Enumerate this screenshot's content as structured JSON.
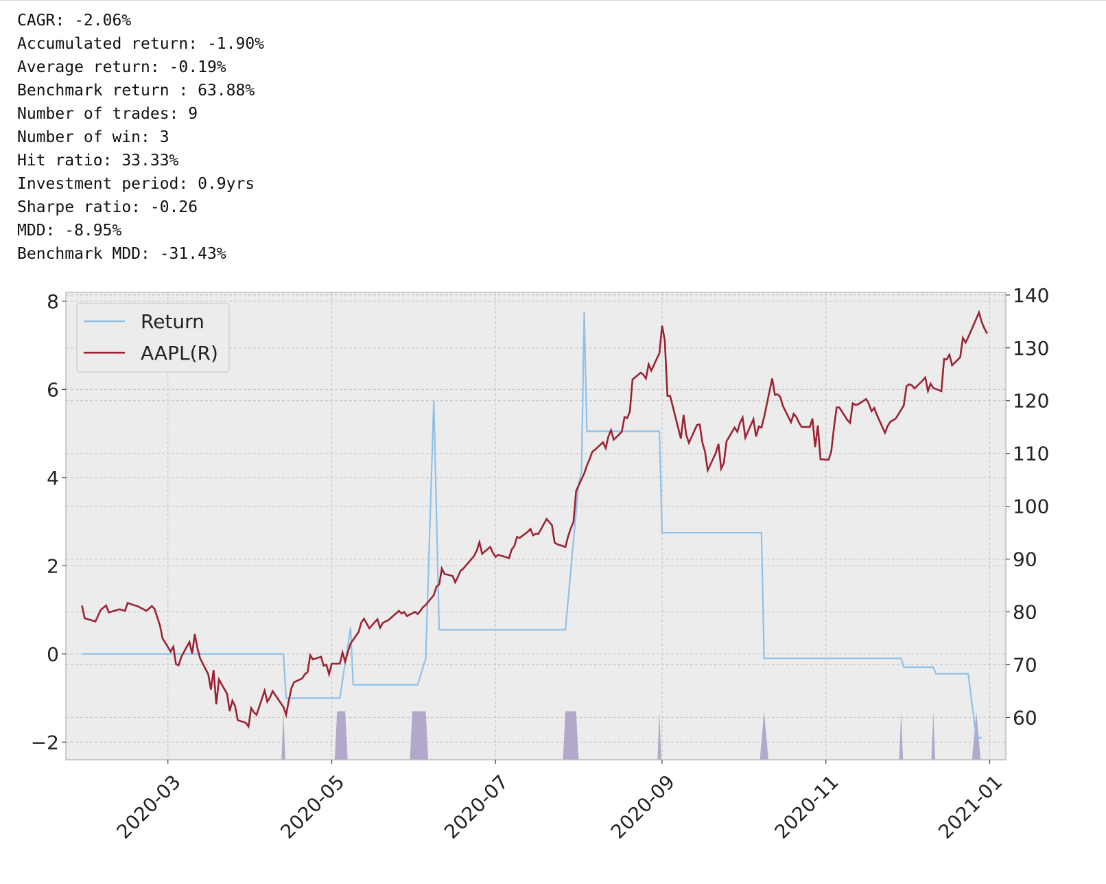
{
  "stats": [
    "CAGR: -2.06%",
    "Accumulated return: -1.90%",
    "Average return: -0.19%",
    "Benchmark return : 63.88%",
    "Number of trades: 9",
    "Number of win: 3",
    "Hit ratio: 33.33%",
    "Investment period: 0.9yrs",
    "Sharpe ratio: -0.26",
    "MDD: -8.95%",
    "Benchmark MDD: -31.43%"
  ],
  "colors": {
    "return": "#8fc1e8",
    "aapl": "#9b2231",
    "fill": "#a89cc4",
    "background": "#ececec",
    "grid": "#c8c8c8"
  },
  "chart_data": {
    "type": "line",
    "legend_position": "top-left",
    "grid": true,
    "ylim_left": [
      -2.4,
      8.2
    ],
    "ylim_right": [
      52,
      140.5
    ],
    "xlim": [
      "2020-01-23",
      "2021-01-07"
    ],
    "x_ticks": [
      "2020-03",
      "2020-05",
      "2020-07",
      "2020-09",
      "2020-11",
      "2021-01"
    ],
    "x_tick_dates": [
      "2020-03-01",
      "2020-05-01",
      "2020-07-01",
      "2020-09-01",
      "2020-11-01",
      "2021-01-01"
    ],
    "y_ticks_left": [
      -2,
      0,
      2,
      4,
      6,
      8
    ],
    "y_ticks_right": [
      60,
      70,
      80,
      90,
      100,
      110,
      120,
      130,
      140
    ],
    "series": [
      {
        "name": "Return",
        "axis": "left",
        "points": [
          [
            "2020-01-29",
            0
          ],
          [
            "2020-04-13",
            0
          ],
          [
            "2020-04-14",
            -1.0
          ],
          [
            "2020-05-04",
            -1.0
          ],
          [
            "2020-05-08",
            0.6
          ],
          [
            "2020-05-09",
            -0.7
          ],
          [
            "2020-06-02",
            -0.7
          ],
          [
            "2020-06-05",
            -0.1
          ],
          [
            "2020-06-08",
            5.75
          ],
          [
            "2020-06-10",
            0.55
          ],
          [
            "2020-07-27",
            0.55
          ],
          [
            "2020-08-01",
            3.9
          ],
          [
            "2020-08-02",
            4.1
          ],
          [
            "2020-08-03",
            7.75
          ],
          [
            "2020-08-04",
            5.05
          ],
          [
            "2020-08-31",
            5.05
          ],
          [
            "2020-09-01",
            2.75
          ],
          [
            "2020-10-08",
            2.75
          ],
          [
            "2020-10-09",
            -0.1
          ],
          [
            "2020-11-29",
            -0.1
          ],
          [
            "2020-11-30",
            -0.3
          ],
          [
            "2020-12-11",
            -0.3
          ],
          [
            "2020-12-12",
            -0.45
          ],
          [
            "2020-12-24",
            -0.45
          ],
          [
            "2020-12-27",
            -1.9
          ],
          [
            "2020-12-29",
            -1.9
          ]
        ]
      },
      {
        "name": "AAPL(R)",
        "axis": "right",
        "points": [
          [
            "2020-01-29",
            81.2
          ],
          [
            "2020-01-30",
            78.8
          ],
          [
            "2020-02-03",
            78.2
          ],
          [
            "2020-02-05",
            80.4
          ],
          [
            "2020-02-07",
            81.2
          ],
          [
            "2020-02-08",
            79.9
          ],
          [
            "2020-02-12",
            80.5
          ],
          [
            "2020-02-14",
            80.2
          ],
          [
            "2020-02-15",
            81.7
          ],
          [
            "2020-02-19",
            81.0
          ],
          [
            "2020-02-22",
            80.2
          ],
          [
            "2020-02-24",
            81.1
          ],
          [
            "2020-02-25",
            80.6
          ],
          [
            "2020-02-27",
            77.5
          ],
          [
            "2020-02-28",
            75.0
          ],
          [
            "2020-03-02",
            72.5
          ],
          [
            "2020-03-03",
            73.4
          ],
          [
            "2020-03-04",
            70.1
          ],
          [
            "2020-03-05",
            69.9
          ],
          [
            "2020-03-06",
            71.5
          ],
          [
            "2020-03-09",
            74.3
          ],
          [
            "2020-03-10",
            72.1
          ],
          [
            "2020-03-11",
            75.8
          ],
          [
            "2020-03-12",
            73.1
          ],
          [
            "2020-03-13",
            71.2
          ],
          [
            "2020-03-16",
            68.2
          ],
          [
            "2020-03-17",
            65.3
          ],
          [
            "2020-03-18",
            69.0
          ],
          [
            "2020-03-19",
            62.5
          ],
          [
            "2020-03-20",
            67.2
          ],
          [
            "2020-03-23",
            64.5
          ],
          [
            "2020-03-24",
            61.2
          ],
          [
            "2020-03-25",
            63.2
          ],
          [
            "2020-03-26",
            62.2
          ],
          [
            "2020-03-27",
            59.5
          ],
          [
            "2020-03-30",
            59.0
          ],
          [
            "2020-03-31",
            58.3
          ],
          [
            "2020-04-01",
            61.8
          ],
          [
            "2020-04-02",
            61.0
          ],
          [
            "2020-04-03",
            60.5
          ],
          [
            "2020-04-06",
            65.1
          ],
          [
            "2020-04-07",
            63.0
          ],
          [
            "2020-04-08",
            63.8
          ],
          [
            "2020-04-09",
            65.0
          ],
          [
            "2020-04-13",
            62.0
          ],
          [
            "2020-04-14",
            60.5
          ],
          [
            "2020-04-15",
            63.2
          ],
          [
            "2020-04-16",
            65.6
          ],
          [
            "2020-04-17",
            66.7
          ],
          [
            "2020-04-20",
            67.4
          ],
          [
            "2020-04-21",
            68.2
          ],
          [
            "2020-04-22",
            68.6
          ],
          [
            "2020-04-23",
            71.8
          ],
          [
            "2020-04-24",
            71.0
          ],
          [
            "2020-04-27",
            71.5
          ],
          [
            "2020-04-28",
            69.8
          ],
          [
            "2020-04-29",
            70.0
          ],
          [
            "2020-04-30",
            68.2
          ],
          [
            "2020-05-01",
            70.2
          ],
          [
            "2020-05-04",
            70.2
          ],
          [
            "2020-05-05",
            72.3
          ],
          [
            "2020-05-06",
            70.6
          ],
          [
            "2020-05-07",
            72.4
          ],
          [
            "2020-05-08",
            74.0
          ],
          [
            "2020-05-11",
            76.2
          ],
          [
            "2020-05-12",
            78.0
          ],
          [
            "2020-05-13",
            78.7
          ],
          [
            "2020-05-14",
            77.8
          ],
          [
            "2020-05-15",
            76.9
          ],
          [
            "2020-05-18",
            78.6
          ],
          [
            "2020-05-19",
            77.0
          ],
          [
            "2020-05-20",
            77.9
          ],
          [
            "2020-05-21",
            78.2
          ],
          [
            "2020-05-22",
            78.4
          ],
          [
            "2020-05-26",
            80.2
          ],
          [
            "2020-05-27",
            79.7
          ],
          [
            "2020-05-28",
            80.0
          ],
          [
            "2020-05-29",
            79.2
          ],
          [
            "2020-06-01",
            80.0
          ],
          [
            "2020-06-02",
            79.6
          ],
          [
            "2020-06-03",
            80.2
          ],
          [
            "2020-06-04",
            80.9
          ],
          [
            "2020-06-05",
            81.3
          ],
          [
            "2020-06-08",
            83.2
          ],
          [
            "2020-06-09",
            84.8
          ],
          [
            "2020-06-10",
            85.2
          ],
          [
            "2020-06-11",
            88.2
          ],
          [
            "2020-06-12",
            87.2
          ],
          [
            "2020-06-15",
            86.8
          ],
          [
            "2020-06-16",
            85.6
          ],
          [
            "2020-06-17",
            86.7
          ],
          [
            "2020-06-18",
            87.8
          ],
          [
            "2020-06-19",
            88.2
          ],
          [
            "2020-06-22",
            90.0
          ],
          [
            "2020-06-23",
            90.6
          ],
          [
            "2020-06-24",
            91.6
          ],
          [
            "2020-06-25",
            93.2
          ],
          [
            "2020-06-26",
            91.0
          ],
          [
            "2020-06-29",
            92.3
          ],
          [
            "2020-06-30",
            91.2
          ],
          [
            "2020-07-01",
            90.4
          ],
          [
            "2020-07-02",
            90.8
          ],
          [
            "2020-07-06",
            90.2
          ],
          [
            "2020-07-07",
            91.8
          ],
          [
            "2020-07-08",
            92.5
          ],
          [
            "2020-07-09",
            94.2
          ],
          [
            "2020-07-10",
            94.0
          ],
          [
            "2020-07-13",
            95.2
          ],
          [
            "2020-07-14",
            95.7
          ],
          [
            "2020-07-15",
            94.5
          ],
          [
            "2020-07-16",
            94.8
          ],
          [
            "2020-07-17",
            94.8
          ],
          [
            "2020-07-20",
            97.6
          ],
          [
            "2020-07-21",
            97.0
          ],
          [
            "2020-07-22",
            96.4
          ],
          [
            "2020-07-23",
            93.1
          ],
          [
            "2020-07-24",
            92.8
          ],
          [
            "2020-07-27",
            92.3
          ],
          [
            "2020-07-28",
            94.3
          ],
          [
            "2020-07-29",
            95.8
          ],
          [
            "2020-07-30",
            97.0
          ],
          [
            "2020-07-31",
            102.9
          ],
          [
            "2020-08-03",
            106.2
          ],
          [
            "2020-08-04",
            107.7
          ],
          [
            "2020-08-05",
            108.9
          ],
          [
            "2020-08-06",
            110.3
          ],
          [
            "2020-08-07",
            110.7
          ],
          [
            "2020-08-10",
            112.1
          ],
          [
            "2020-08-11",
            111.0
          ],
          [
            "2020-08-12",
            113.2
          ],
          [
            "2020-08-13",
            114.4
          ],
          [
            "2020-08-14",
            112.6
          ],
          [
            "2020-08-17",
            114.1
          ],
          [
            "2020-08-18",
            116.9
          ],
          [
            "2020-08-19",
            116.7
          ],
          [
            "2020-08-20",
            117.9
          ],
          [
            "2020-08-21",
            124.0
          ],
          [
            "2020-08-24",
            125.3
          ],
          [
            "2020-08-25",
            124.9
          ],
          [
            "2020-08-26",
            124.2
          ],
          [
            "2020-08-27",
            126.9
          ],
          [
            "2020-08-28",
            125.7
          ],
          [
            "2020-08-31",
            129.0
          ],
          [
            "2020-09-01",
            134.2
          ],
          [
            "2020-09-02",
            131.4
          ],
          [
            "2020-09-03",
            120.9
          ],
          [
            "2020-09-04",
            120.9
          ],
          [
            "2020-09-08",
            112.8
          ],
          [
            "2020-09-09",
            117.3
          ],
          [
            "2020-09-10",
            113.5
          ],
          [
            "2020-09-11",
            112.0
          ],
          [
            "2020-09-14",
            115.4
          ],
          [
            "2020-09-15",
            115.5
          ],
          [
            "2020-09-16",
            112.1
          ],
          [
            "2020-09-17",
            110.3
          ],
          [
            "2020-09-18",
            106.8
          ],
          [
            "2020-09-21",
            110.1
          ],
          [
            "2020-09-22",
            111.8
          ],
          [
            "2020-09-23",
            107.1
          ],
          [
            "2020-09-24",
            108.2
          ],
          [
            "2020-09-25",
            112.3
          ],
          [
            "2020-09-28",
            114.9
          ],
          [
            "2020-09-29",
            114.1
          ],
          [
            "2020-09-30",
            115.8
          ],
          [
            "2020-10-01",
            116.8
          ],
          [
            "2020-10-02",
            113.0
          ],
          [
            "2020-10-05",
            116.5
          ],
          [
            "2020-10-06",
            113.2
          ],
          [
            "2020-10-07",
            115.1
          ],
          [
            "2020-10-08",
            114.9
          ],
          [
            "2020-10-09",
            116.9
          ],
          [
            "2020-10-12",
            124.2
          ],
          [
            "2020-10-13",
            121.1
          ],
          [
            "2020-10-14",
            121.2
          ],
          [
            "2020-10-15",
            120.7
          ],
          [
            "2020-10-16",
            119.0
          ],
          [
            "2020-10-19",
            115.9
          ],
          [
            "2020-10-20",
            117.5
          ],
          [
            "2020-10-21",
            116.9
          ],
          [
            "2020-10-22",
            115.8
          ],
          [
            "2020-10-23",
            115.0
          ],
          [
            "2020-10-26",
            115.0
          ],
          [
            "2020-10-27",
            116.6
          ],
          [
            "2020-10-28",
            111.2
          ],
          [
            "2020-10-29",
            115.3
          ],
          [
            "2020-10-30",
            108.9
          ],
          [
            "2020-11-02",
            108.8
          ],
          [
            "2020-11-03",
            110.4
          ],
          [
            "2020-11-04",
            114.9
          ],
          [
            "2020-11-05",
            118.7
          ],
          [
            "2020-11-06",
            118.7
          ],
          [
            "2020-11-09",
            116.3
          ],
          [
            "2020-11-10",
            115.8
          ],
          [
            "2020-11-11",
            119.5
          ],
          [
            "2020-11-12",
            119.2
          ],
          [
            "2020-11-13",
            119.3
          ],
          [
            "2020-11-16",
            120.3
          ],
          [
            "2020-11-17",
            119.4
          ],
          [
            "2020-11-18",
            118.0
          ],
          [
            "2020-11-19",
            118.6
          ],
          [
            "2020-11-20",
            117.3
          ],
          [
            "2020-11-23",
            113.9
          ],
          [
            "2020-11-24",
            115.2
          ],
          [
            "2020-11-25",
            116.0
          ],
          [
            "2020-11-27",
            116.6
          ],
          [
            "2020-11-30",
            119.1
          ],
          [
            "2020-12-01",
            122.7
          ],
          [
            "2020-12-02",
            123.1
          ],
          [
            "2020-12-03",
            122.9
          ],
          [
            "2020-12-04",
            122.3
          ],
          [
            "2020-12-07",
            123.8
          ],
          [
            "2020-12-08",
            124.4
          ],
          [
            "2020-12-09",
            121.8
          ],
          [
            "2020-12-10",
            123.2
          ],
          [
            "2020-12-11",
            122.4
          ],
          [
            "2020-12-14",
            121.8
          ],
          [
            "2020-12-15",
            127.9
          ],
          [
            "2020-12-16",
            127.8
          ],
          [
            "2020-12-17",
            128.7
          ],
          [
            "2020-12-18",
            126.7
          ],
          [
            "2020-12-21",
            128.2
          ],
          [
            "2020-12-22",
            131.9
          ],
          [
            "2020-12-23",
            131.0
          ],
          [
            "2020-12-24",
            132.0
          ],
          [
            "2020-12-28",
            136.7
          ],
          [
            "2020-12-29",
            134.9
          ],
          [
            "2020-12-30",
            133.7
          ],
          [
            "2020-12-31",
            132.7
          ]
        ]
      }
    ],
    "fill_regions": [
      {
        "peak": "2020-04-13",
        "spread_days": 0.7
      },
      {
        "start": "2020-05-03",
        "end": "2020-05-06",
        "spread_days": 0.9
      },
      {
        "start": "2020-05-31",
        "end": "2020-06-05",
        "spread_days": 0.9
      },
      {
        "start": "2020-07-27",
        "end": "2020-07-31",
        "spread_days": 0.9
      },
      {
        "peak": "2020-08-31",
        "spread_days": 0.7
      },
      {
        "peak": "2020-10-09",
        "spread_days": 1.6
      },
      {
        "peak": "2020-11-29",
        "spread_days": 0.7
      },
      {
        "peak": "2020-12-11",
        "spread_days": 0.7
      },
      {
        "peak": "2020-12-27",
        "spread_days": 1.6
      }
    ],
    "fill_level": -1.3
  }
}
